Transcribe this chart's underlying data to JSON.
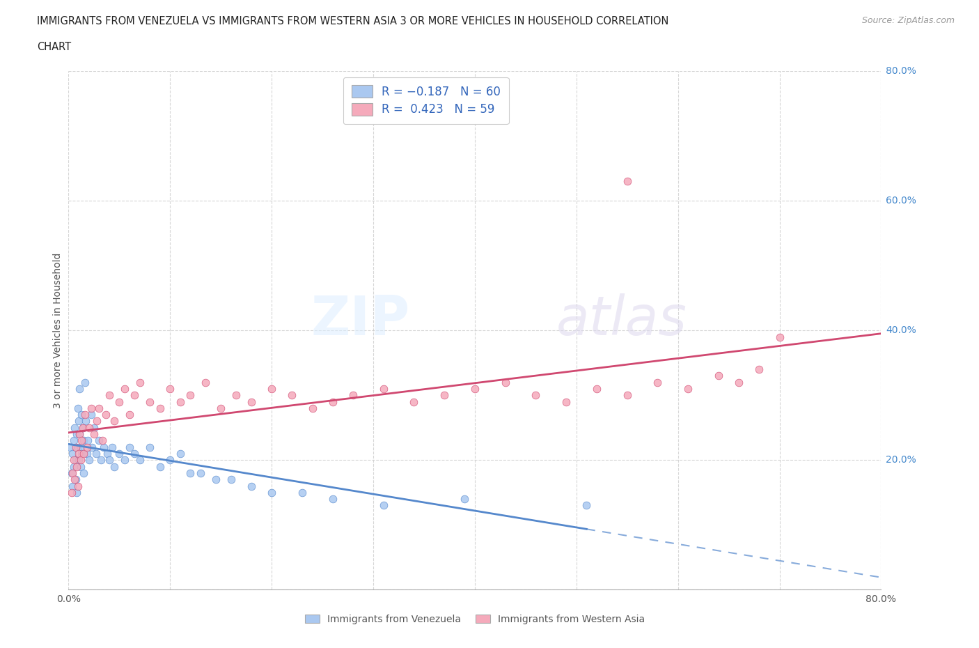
{
  "title_line1": "IMMIGRANTS FROM VENEZUELA VS IMMIGRANTS FROM WESTERN ASIA 3 OR MORE VEHICLES IN HOUSEHOLD CORRELATION",
  "title_line2": "CHART",
  "source_text": "Source: ZipAtlas.com",
  "ylabel": "3 or more Vehicles in Household",
  "xlim": [
    0.0,
    0.8
  ],
  "ylim": [
    0.0,
    0.8
  ],
  "r_venezuela": -0.187,
  "n_venezuela": 60,
  "r_western_asia": 0.423,
  "n_western_asia": 59,
  "color_venezuela": "#aac8f0",
  "color_western_asia": "#f5aabb",
  "line_color_venezuela": "#5588cc",
  "line_color_western_asia": "#d04870",
  "background_color": "#ffffff",
  "venezuela_x": [
    0.002,
    0.003,
    0.004,
    0.004,
    0.005,
    0.005,
    0.006,
    0.007,
    0.007,
    0.008,
    0.008,
    0.009,
    0.009,
    0.01,
    0.01,
    0.011,
    0.011,
    0.012,
    0.012,
    0.013,
    0.013,
    0.014,
    0.015,
    0.015,
    0.016,
    0.017,
    0.018,
    0.019,
    0.02,
    0.022,
    0.023,
    0.025,
    0.027,
    0.03,
    0.032,
    0.035,
    0.038,
    0.04,
    0.043,
    0.045,
    0.05,
    0.055,
    0.06,
    0.065,
    0.07,
    0.08,
    0.09,
    0.1,
    0.11,
    0.12,
    0.13,
    0.145,
    0.16,
    0.18,
    0.2,
    0.23,
    0.26,
    0.31,
    0.39,
    0.51
  ],
  "venezuela_y": [
    0.22,
    0.18,
    0.21,
    0.16,
    0.23,
    0.19,
    0.25,
    0.2,
    0.17,
    0.24,
    0.15,
    0.22,
    0.28,
    0.2,
    0.26,
    0.31,
    0.24,
    0.22,
    0.19,
    0.27,
    0.21,
    0.25,
    0.23,
    0.18,
    0.32,
    0.26,
    0.21,
    0.23,
    0.2,
    0.27,
    0.22,
    0.25,
    0.21,
    0.23,
    0.2,
    0.22,
    0.21,
    0.2,
    0.22,
    0.19,
    0.21,
    0.2,
    0.22,
    0.21,
    0.2,
    0.22,
    0.19,
    0.2,
    0.21,
    0.18,
    0.18,
    0.17,
    0.17,
    0.16,
    0.15,
    0.15,
    0.14,
    0.13,
    0.14,
    0.13
  ],
  "western_asia_x": [
    0.003,
    0.004,
    0.005,
    0.006,
    0.007,
    0.008,
    0.009,
    0.01,
    0.011,
    0.012,
    0.013,
    0.014,
    0.015,
    0.016,
    0.018,
    0.02,
    0.022,
    0.025,
    0.028,
    0.03,
    0.033,
    0.037,
    0.04,
    0.045,
    0.05,
    0.055,
    0.06,
    0.065,
    0.07,
    0.08,
    0.09,
    0.1,
    0.11,
    0.12,
    0.135,
    0.15,
    0.165,
    0.18,
    0.2,
    0.22,
    0.24,
    0.26,
    0.28,
    0.31,
    0.34,
    0.37,
    0.4,
    0.43,
    0.46,
    0.49,
    0.52,
    0.55,
    0.58,
    0.61,
    0.64,
    0.66,
    0.68,
    0.7,
    0.55
  ],
  "western_asia_y": [
    0.15,
    0.18,
    0.2,
    0.17,
    0.22,
    0.19,
    0.16,
    0.21,
    0.24,
    0.2,
    0.23,
    0.25,
    0.21,
    0.27,
    0.22,
    0.25,
    0.28,
    0.24,
    0.26,
    0.28,
    0.23,
    0.27,
    0.3,
    0.26,
    0.29,
    0.31,
    0.27,
    0.3,
    0.32,
    0.29,
    0.28,
    0.31,
    0.29,
    0.3,
    0.32,
    0.28,
    0.3,
    0.29,
    0.31,
    0.3,
    0.28,
    0.29,
    0.3,
    0.31,
    0.29,
    0.3,
    0.31,
    0.32,
    0.3,
    0.29,
    0.31,
    0.3,
    0.32,
    0.31,
    0.33,
    0.32,
    0.34,
    0.39,
    0.63
  ]
}
